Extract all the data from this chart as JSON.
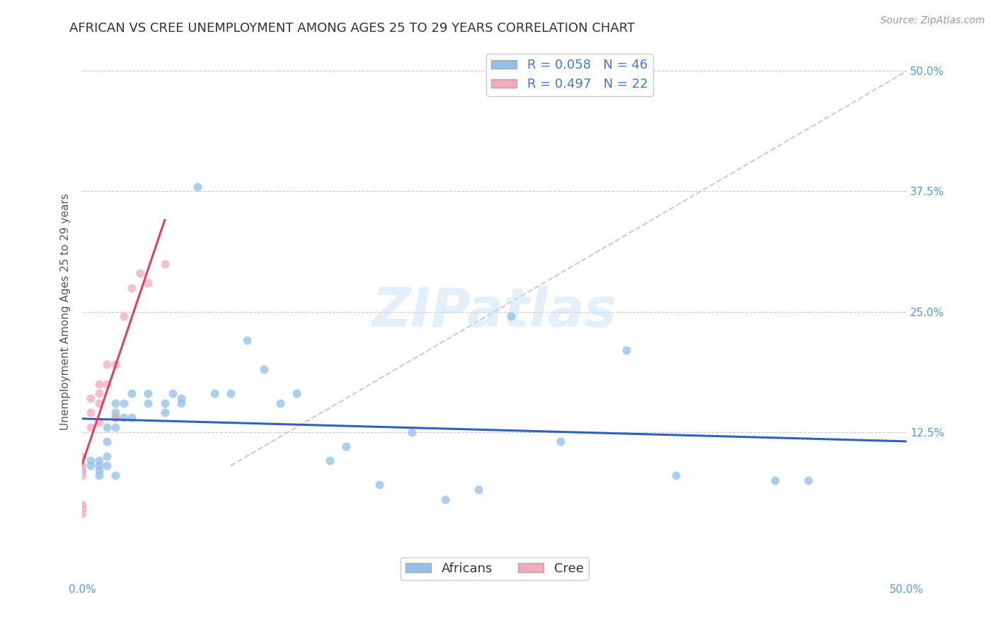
{
  "title": "AFRICAN VS CREE UNEMPLOYMENT AMONG AGES 25 TO 29 YEARS CORRELATION CHART",
  "source": "Source: ZipAtlas.com",
  "ylabel": "Unemployment Among Ages 25 to 29 years",
  "xlim": [
    0.0,
    0.5
  ],
  "ylim": [
    -0.03,
    0.53
  ],
  "xtick_vals": [
    0.0,
    0.125,
    0.25,
    0.375,
    0.5
  ],
  "xtick_labels": [
    "0.0%",
    "",
    "",
    "",
    "50.0%"
  ],
  "ytick_labels_right": [
    "50.0%",
    "37.5%",
    "25.0%",
    "12.5%"
  ],
  "ytick_vals_right": [
    0.5,
    0.375,
    0.25,
    0.125
  ],
  "african_r": 0.058,
  "african_n": 46,
  "cree_r": 0.497,
  "cree_n": 22,
  "african_color": "#92c0ea",
  "cree_color": "#f5aabb",
  "african_line_color": "#3060c0",
  "cree_line_color": "#e04060",
  "diagonal_color": "#cccccc",
  "watermark": "ZIPatlas",
  "africans_x": [
    0.0,
    0.005,
    0.005,
    0.01,
    0.01,
    0.01,
    0.01,
    0.015,
    0.015,
    0.015,
    0.015,
    0.02,
    0.02,
    0.02,
    0.02,
    0.02,
    0.025,
    0.025,
    0.03,
    0.03,
    0.04,
    0.04,
    0.05,
    0.05,
    0.055,
    0.06,
    0.06,
    0.07,
    0.08,
    0.09,
    0.1,
    0.11,
    0.12,
    0.13,
    0.15,
    0.16,
    0.18,
    0.2,
    0.22,
    0.24,
    0.26,
    0.29,
    0.33,
    0.36,
    0.42,
    0.44
  ],
  "africans_y": [
    0.085,
    0.095,
    0.09,
    0.095,
    0.09,
    0.085,
    0.08,
    0.13,
    0.115,
    0.1,
    0.09,
    0.155,
    0.145,
    0.14,
    0.13,
    0.08,
    0.155,
    0.14,
    0.165,
    0.14,
    0.165,
    0.155,
    0.155,
    0.145,
    0.165,
    0.16,
    0.155,
    0.38,
    0.165,
    0.165,
    0.22,
    0.19,
    0.155,
    0.165,
    0.095,
    0.11,
    0.07,
    0.125,
    0.055,
    0.065,
    0.245,
    0.115,
    0.21,
    0.08,
    0.075,
    0.075
  ],
  "cree_x": [
    0.0,
    0.0,
    0.0,
    0.0,
    0.0,
    0.0,
    0.005,
    0.005,
    0.005,
    0.01,
    0.01,
    0.01,
    0.01,
    0.015,
    0.015,
    0.02,
    0.02,
    0.025,
    0.03,
    0.035,
    0.04,
    0.05
  ],
  "cree_y": [
    0.04,
    0.045,
    0.05,
    0.08,
    0.09,
    0.1,
    0.13,
    0.145,
    0.16,
    0.155,
    0.165,
    0.175,
    0.135,
    0.175,
    0.195,
    0.14,
    0.195,
    0.245,
    0.275,
    0.29,
    0.28,
    0.3
  ],
  "cree_line_xrange": [
    0.0,
    0.05
  ],
  "african_line_xrange": [
    0.0,
    0.5
  ],
  "diagonal_xrange": [
    0.09,
    0.5
  ],
  "marker_size": 75,
  "title_fontsize": 13,
  "label_fontsize": 11,
  "legend_fontsize": 13,
  "tick_fontsize": 11,
  "source_fontsize": 10
}
